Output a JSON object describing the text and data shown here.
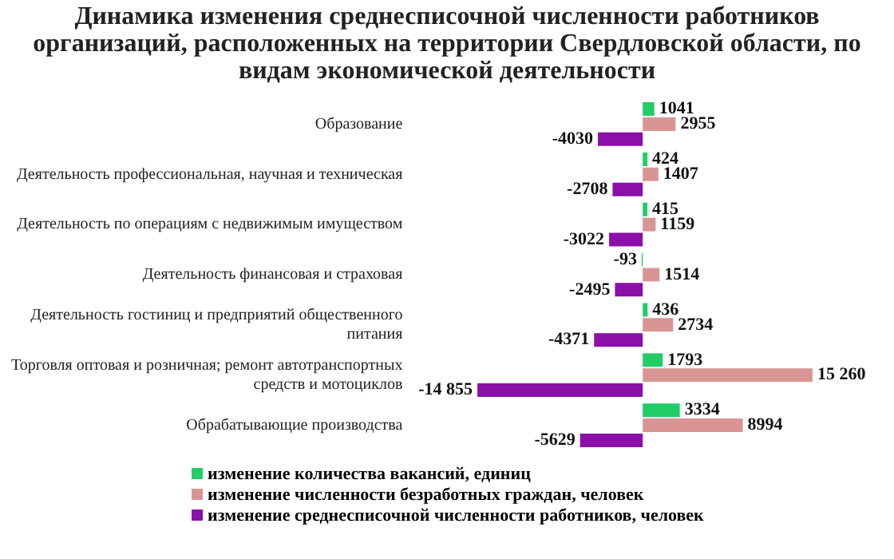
{
  "chart_data": {
    "type": "bar",
    "orientation": "horizontal",
    "title": "Динамика изменения среднесписочной численности работников организаций, расположенных на территории Свердловской области, по видам экономической деятельности",
    "categories": [
      "Образование",
      "Деятельность профессиональная, научная и техническая",
      "Деятельность по операциям с недвижимым имуществом",
      "Деятельность финансовая и страховая",
      "Деятельность гостиниц и предприятий общественного питания",
      "Торговля оптовая и розничная; ремонт автотранспортных средств и мотоциклов",
      "Обрабатывающие производства"
    ],
    "series": [
      {
        "name": "изменение количества вакансий, единиц",
        "color": "#22cc66",
        "values": [
          1041,
          424,
          415,
          -93,
          436,
          1793,
          3334
        ],
        "value_labels": [
          "1041",
          "424",
          "415",
          "-93",
          "436",
          "1793",
          "3334"
        ]
      },
      {
        "name": "изменение численности безработных граждан, человек",
        "color": "#d99594",
        "values": [
          2955,
          1407,
          1159,
          1514,
          2734,
          15260,
          8994
        ],
        "value_labels": [
          "2955",
          "1407",
          "1159",
          "1514",
          "2734",
          "15 260",
          "8994"
        ]
      },
      {
        "name": "изменение среднесписочной численности работников, человек",
        "color": "#8b0fa8",
        "values": [
          -4030,
          -2708,
          -3022,
          -2495,
          -4371,
          -14855,
          -5629
        ],
        "value_labels": [
          "-4030",
          "-2708",
          "-3022",
          "-2495",
          "-4371",
          "-14 855",
          "-5629"
        ]
      }
    ],
    "legend": "bottom"
  }
}
